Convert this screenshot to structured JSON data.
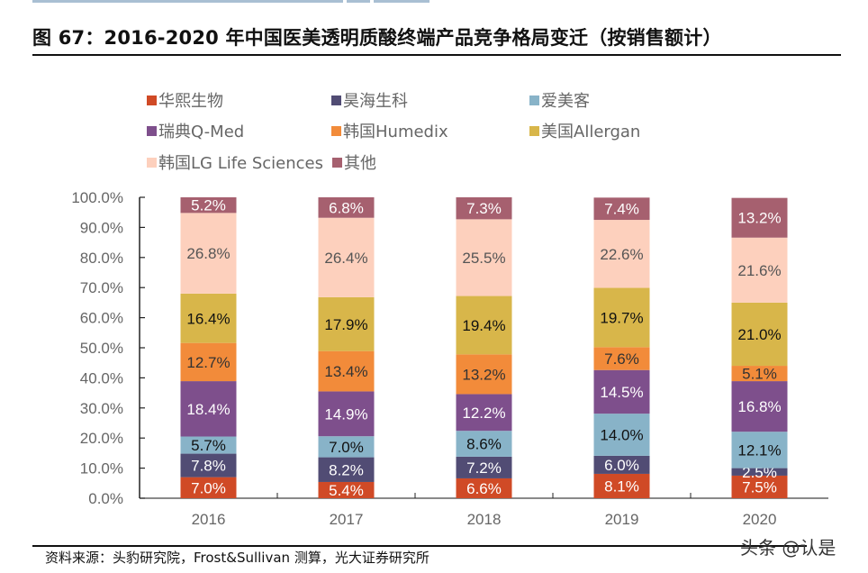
{
  "figure": {
    "title": "图 67：2016-2020 年中国医美透明质酸终端产品竞争格局变迁（按销售额计）",
    "source": "资料来源：头豹研究院，Frost&Sullivan 测算，光大证券研究所",
    "watermark": "头条 @认是"
  },
  "chart_data": {
    "type": "bar",
    "stacked": true,
    "title": "2016-2020 年中国医美透明质酸终端产品竞争格局变迁（按销售额计）",
    "xlabel": "",
    "ylabel": "",
    "ylim": [
      0,
      100
    ],
    "yticks": [
      "0.0%",
      "10.0%",
      "20.0%",
      "30.0%",
      "40.0%",
      "50.0%",
      "60.0%",
      "70.0%",
      "80.0%",
      "90.0%",
      "100.0%"
    ],
    "grid": false,
    "legend_position": "top",
    "categories": [
      "2016",
      "2017",
      "2018",
      "2019",
      "2020"
    ],
    "series": [
      {
        "name": "华熙生物",
        "color": "#d04a26",
        "label_color": "#ffffff",
        "values": [
          7.0,
          5.4,
          6.6,
          8.1,
          7.5
        ],
        "labels": [
          "7.0%",
          "5.4%",
          "6.6%",
          "8.1%",
          "7.5%"
        ]
      },
      {
        "name": "昊海生科",
        "color": "#514c74",
        "label_color": "#ffffff",
        "values": [
          7.8,
          8.2,
          7.2,
          6.0,
          2.5
        ],
        "labels": [
          "7.8%",
          "8.2%",
          "7.2%",
          "6.0%",
          "2.5%"
        ]
      },
      {
        "name": "爱美客",
        "color": "#88b3c8",
        "label_color": "#111111",
        "values": [
          5.7,
          7.0,
          8.6,
          14.0,
          12.1
        ],
        "labels": [
          "5.7%",
          "7.0%",
          "8.6%",
          "14.0%",
          "12.1%"
        ]
      },
      {
        "name": "瑞典Q-Med",
        "color": "#7e4f8c",
        "label_color": "#ffffff",
        "values": [
          18.4,
          14.9,
          12.2,
          14.5,
          16.8
        ],
        "labels": [
          "18.4%",
          "14.9%",
          "12.2%",
          "14.5%",
          "16.8%"
        ]
      },
      {
        "name": "韩国Humedix",
        "color": "#f28b3a",
        "label_color": "#333333",
        "values": [
          12.7,
          13.4,
          13.2,
          7.6,
          5.1
        ],
        "labels": [
          "12.7%",
          "13.4%",
          "13.2%",
          "7.6%",
          "5.1%"
        ]
      },
      {
        "name": "美国Allergan",
        "color": "#d8b64a",
        "label_color": "#111111",
        "values": [
          16.4,
          17.9,
          19.4,
          19.7,
          21.0
        ],
        "labels": [
          "16.4%",
          "17.9%",
          "19.4%",
          "19.7%",
          "21.0%"
        ]
      },
      {
        "name": "韩国LG Life Sciences",
        "color": "#fdd0bd",
        "label_color": "#555555",
        "values": [
          26.8,
          26.4,
          25.5,
          22.6,
          21.6
        ],
        "labels": [
          "26.8%",
          "26.4%",
          "25.5%",
          "22.6%",
          "21.6%"
        ]
      },
      {
        "name": "其他",
        "color": "#a6606f",
        "label_color": "#ffffff",
        "values": [
          5.2,
          6.8,
          7.3,
          7.4,
          13.2
        ],
        "labels": [
          "5.2%",
          "6.8%",
          "7.3%",
          "7.4%",
          "13.2%"
        ]
      }
    ]
  }
}
